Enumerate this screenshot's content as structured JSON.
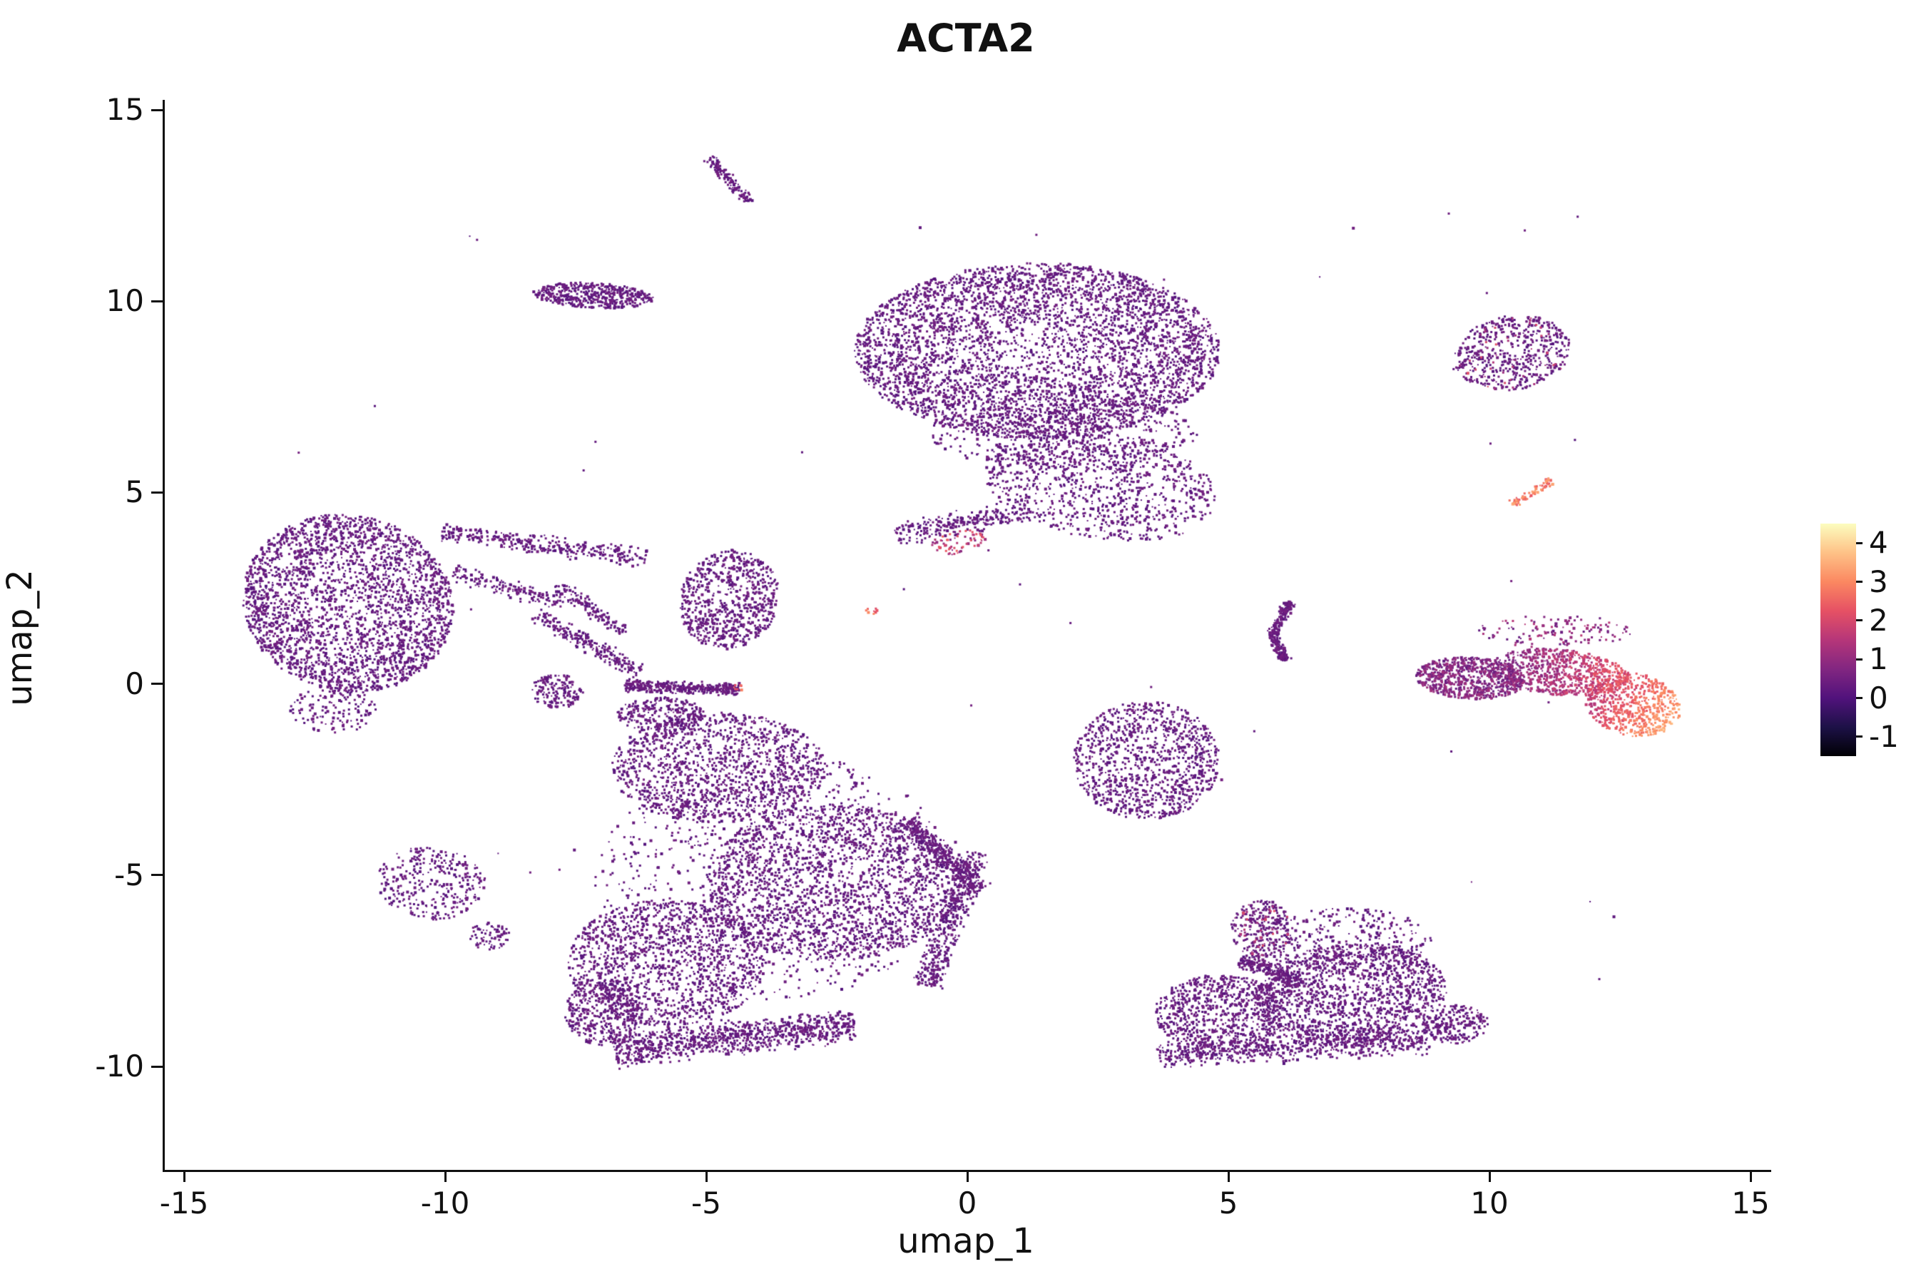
{
  "chart_data": {
    "type": "scatter",
    "title": "ACTA2",
    "xlabel": "umap_1",
    "ylabel": "umap_2",
    "xlim": [
      -15.4,
      15.4
    ],
    "ylim": [
      -12.7,
      15.3
    ],
    "x_ticks": [
      -15,
      -10,
      -5,
      0,
      5,
      10,
      15
    ],
    "y_ticks": [
      -10,
      -5,
      0,
      5,
      10,
      15
    ],
    "grid": false,
    "legend_position": "right",
    "colorbar": {
      "ticks": [
        4,
        3,
        2,
        1,
        0,
        -1
      ],
      "vmin": -1.5,
      "vmax": 4.5,
      "colormap": "magma",
      "stops": [
        {
          "t": 0.0,
          "c": "#000004"
        },
        {
          "t": 0.125,
          "c": "#1d1147"
        },
        {
          "t": 0.25,
          "c": "#51127c"
        },
        {
          "t": 0.375,
          "c": "#822681"
        },
        {
          "t": 0.5,
          "c": "#b63679"
        },
        {
          "t": 0.625,
          "c": "#e65164"
        },
        {
          "t": 0.75,
          "c": "#fb8861"
        },
        {
          "t": 0.875,
          "c": "#fec287"
        },
        {
          "t": 1.0,
          "c": "#fcfdbf"
        }
      ]
    },
    "base_point_color": "#51127c",
    "clusters": [
      {
        "name": "tiny-streak-top",
        "shape": "streak",
        "x1": -5.0,
        "y1": 13.75,
        "x2": -4.2,
        "y2": 12.6,
        "w": 0.16,
        "n": 130
      },
      {
        "name": "band-top-left",
        "shape": "gauss",
        "cx": -7.2,
        "cy": 10.15,
        "rx": 1.15,
        "ry": 0.33,
        "rot": -4,
        "p": 0.45,
        "n": 480
      },
      {
        "name": "top-main-blob",
        "shape": "gauss",
        "cx": 1.3,
        "cy": 8.7,
        "rx": 3.5,
        "ry": 2.3,
        "rot": 0,
        "p": 0.42,
        "n": 4300
      },
      {
        "name": "top-main-lower",
        "shape": "gauss",
        "cx": 2.5,
        "cy": 5.2,
        "rx": 2.3,
        "ry": 1.4,
        "rot": -15,
        "p": 0.5,
        "n": 950
      },
      {
        "name": "top-main-bridge",
        "shape": "gauss",
        "cx": 1.8,
        "cy": 6.6,
        "rx": 2.6,
        "ry": 1.0,
        "rot": 0,
        "p": 0.5,
        "n": 450
      },
      {
        "name": "top-tail-streak",
        "shape": "streak",
        "x1": -1.4,
        "y1": 3.9,
        "x2": 1.1,
        "y2": 4.5,
        "w": 0.35,
        "n": 260
      },
      {
        "name": "top-tail-hot",
        "shape": "gauss",
        "cx": -0.2,
        "cy": 3.7,
        "rx": 0.55,
        "ry": 0.3,
        "rot": 15,
        "n": 70,
        "v": [
          0.6,
          2.6
        ]
      },
      {
        "name": "ne-cluster",
        "shape": "gauss",
        "cx": 10.4,
        "cy": 8.65,
        "rx": 1.15,
        "ry": 0.95,
        "rot": 25,
        "p": 0.47,
        "n": 560,
        "hot": {
          "frac": 0.07,
          "v": [
            0.9,
            2.2
          ]
        }
      },
      {
        "name": "orange-streak",
        "shape": "streak",
        "x1": 10.35,
        "y1": 4.65,
        "x2": 11.15,
        "y2": 5.3,
        "w": 0.12,
        "n": 75,
        "v": [
          2.1,
          3.4
        ]
      },
      {
        "name": "left-cluster-core",
        "shape": "gauss",
        "cx": -11.9,
        "cy": 2.1,
        "rx": 2.0,
        "ry": 2.35,
        "rot": 12,
        "p": 0.42,
        "n": 2700
      },
      {
        "name": "left-cluster-tail",
        "shape": "streak",
        "x1": -10.1,
        "y1": 3.95,
        "x2": -6.2,
        "y2": 3.3,
        "w": 0.3,
        "n": 330
      },
      {
        "name": "left-cluster-arc",
        "shape": "streak",
        "x1": -9.9,
        "y1": 2.9,
        "x2": -7.8,
        "y2": 2.1,
        "w": 0.25,
        "n": 150
      },
      {
        "name": "left-cluster-low",
        "shape": "gauss",
        "cx": -12.2,
        "cy": -0.7,
        "rx": 0.85,
        "ry": 0.6,
        "rot": 0,
        "n": 130
      },
      {
        "name": "midleft-blob",
        "shape": "gauss",
        "cx": -4.6,
        "cy": 2.2,
        "rx": 0.95,
        "ry": 1.3,
        "rot": -8,
        "p": 0.45,
        "n": 750
      },
      {
        "name": "midleft-arc1",
        "shape": "streak",
        "x1": -8.3,
        "y1": 1.8,
        "x2": -6.3,
        "y2": 0.3,
        "w": 0.25,
        "n": 230
      },
      {
        "name": "midleft-arc2",
        "shape": "streak",
        "x1": -7.9,
        "y1": 2.6,
        "x2": -6.6,
        "y2": 1.3,
        "w": 0.2,
        "n": 130
      },
      {
        "name": "midleft-small",
        "shape": "gauss",
        "cx": -7.9,
        "cy": -0.2,
        "rx": 0.5,
        "ry": 0.45,
        "rot": 0,
        "n": 160
      },
      {
        "name": "midleft-bar",
        "shape": "streak",
        "x1": -6.6,
        "y1": -0.05,
        "x2": -4.4,
        "y2": -0.15,
        "w": 0.18,
        "n": 420
      },
      {
        "name": "midleft-bar-hot",
        "shape": "gauss",
        "cx": -4.45,
        "cy": -0.1,
        "rx": 0.15,
        "ry": 0.08,
        "rot": 0,
        "n": 10,
        "v": [
          1.4,
          2.9
        ]
      },
      {
        "name": "red-dot",
        "shape": "gauss",
        "cx": -1.85,
        "cy": 1.9,
        "rx": 0.14,
        "ry": 0.08,
        "rot": 0,
        "n": 9,
        "v": [
          2.0,
          3.2
        ]
      },
      {
        "name": "small-hook-a",
        "shape": "streak",
        "x1": 6.15,
        "y1": 2.15,
        "x2": 5.8,
        "y2": 1.3,
        "w": 0.14,
        "n": 150
      },
      {
        "name": "small-hook-b",
        "shape": "streak",
        "x1": 5.8,
        "y1": 1.3,
        "x2": 6.05,
        "y2": 0.6,
        "w": 0.14,
        "n": 130
      },
      {
        "name": "hot-left",
        "shape": "gauss",
        "cx": 9.6,
        "cy": 0.15,
        "rx": 1.05,
        "ry": 0.55,
        "rot": -5,
        "p": 0.45,
        "n": 750,
        "v": [
          0.15,
          1.2
        ]
      },
      {
        "name": "hot-mid",
        "shape": "gauss",
        "cx": 11.3,
        "cy": 0.3,
        "rx": 1.35,
        "ry": 0.6,
        "rot": -8,
        "p": 0.5,
        "n": 750,
        "grad": {
          "v0": 0.4,
          "v1": 2.3,
          "noise": 0.9
        }
      },
      {
        "name": "hot-right",
        "shape": "gauss",
        "cx": 12.7,
        "cy": -0.55,
        "rx": 0.95,
        "ry": 0.8,
        "rot": -30,
        "p": 0.5,
        "n": 600,
        "grad": {
          "v0": 1.4,
          "v1": 3.4,
          "noise": 0.8
        }
      },
      {
        "name": "hot-top-sparse",
        "shape": "gauss",
        "cx": 11.2,
        "cy": 1.35,
        "rx": 1.5,
        "ry": 0.45,
        "rot": 0,
        "n": 130,
        "v": [
          0.2,
          1.6
        ]
      },
      {
        "name": "mid-triangle",
        "shape": "gauss",
        "cx": 3.4,
        "cy": -2.0,
        "rx": 1.4,
        "ry": 1.55,
        "rot": 0,
        "p": 0.44,
        "n": 1050
      },
      {
        "name": "bl-lobe1",
        "shape": "gauss",
        "cx": -4.8,
        "cy": -2.2,
        "rx": 2.05,
        "ry": 1.45,
        "rot": 0,
        "p": 0.47,
        "n": 1300
      },
      {
        "name": "bl-lobe2",
        "shape": "gauss",
        "cx": -2.6,
        "cy": -5.2,
        "rx": 2.45,
        "ry": 2.05,
        "rot": 0,
        "p": 0.47,
        "n": 2000
      },
      {
        "name": "bl-lobe3",
        "shape": "gauss",
        "cx": -5.8,
        "cy": -7.3,
        "rx": 1.9,
        "ry": 1.65,
        "rot": 0,
        "p": 0.47,
        "n": 1400
      },
      {
        "name": "bl-bottom-arc",
        "shape": "streak",
        "x1": -6.8,
        "y1": -9.6,
        "x2": -2.2,
        "y2": -8.9,
        "w": 0.5,
        "n": 950
      },
      {
        "name": "bl-lobe5",
        "shape": "gauss",
        "cx": -7.0,
        "cy": -8.6,
        "rx": 0.75,
        "ry": 0.85,
        "rot": 0,
        "n": 350
      },
      {
        "name": "bl-diag-streak",
        "shape": "streak",
        "x1": -1.2,
        "y1": -3.6,
        "x2": 0.2,
        "y2": -5.4,
        "w": 0.3,
        "n": 350
      },
      {
        "name": "bl-right-edge",
        "shape": "streak",
        "x1": 0.1,
        "y1": -4.4,
        "x2": -0.8,
        "y2": -7.9,
        "w": 0.35,
        "n": 500
      },
      {
        "name": "bl-top-edge",
        "shape": "gauss",
        "cx": -5.9,
        "cy": -0.8,
        "rx": 0.85,
        "ry": 0.45,
        "rot": 0,
        "n": 280
      },
      {
        "name": "bl-sparse",
        "shape": "gauss",
        "cx": -3.8,
        "cy": -5.0,
        "rx": 3.4,
        "ry": 3.3,
        "rot": 0,
        "n": 900
      },
      {
        "name": "left-low-small",
        "shape": "gauss",
        "cx": -10.3,
        "cy": -5.2,
        "rx": 1.05,
        "ry": 0.95,
        "rot": -20,
        "n": 320
      },
      {
        "name": "left-low-tiny",
        "shape": "gauss",
        "cx": -9.2,
        "cy": -6.6,
        "rx": 0.4,
        "ry": 0.35,
        "rot": 0,
        "n": 70
      },
      {
        "name": "br-left-lobe",
        "shape": "gauss",
        "cx": 4.8,
        "cy": -8.6,
        "rx": 1.25,
        "ry": 1.0,
        "rot": 0,
        "p": 0.46,
        "n": 750
      },
      {
        "name": "br-right-lobe",
        "shape": "gauss",
        "cx": 7.3,
        "cy": -8.1,
        "rx": 1.85,
        "ry": 1.3,
        "rot": 8,
        "p": 0.46,
        "n": 1450
      },
      {
        "name": "br-bottom-arc",
        "shape": "streak",
        "x1": 3.6,
        "y1": -9.7,
        "x2": 8.8,
        "y2": -9.3,
        "w": 0.42,
        "n": 700
      },
      {
        "name": "br-top-protrusion",
        "shape": "gauss",
        "cx": 5.6,
        "cy": -6.4,
        "rx": 0.6,
        "ry": 0.75,
        "rot": 0,
        "n": 280,
        "hot": {
          "frac": 0.15,
          "v": [
            0.8,
            2.2
          ]
        }
      },
      {
        "name": "br-neck",
        "shape": "streak",
        "x1": 5.2,
        "y1": -7.2,
        "x2": 6.4,
        "y2": -7.8,
        "w": 0.25,
        "n": 230
      },
      {
        "name": "br-right-tip",
        "shape": "gauss",
        "cx": 9.3,
        "cy": -8.9,
        "rx": 0.65,
        "ry": 0.5,
        "rot": 0,
        "n": 220
      },
      {
        "name": "br-top-sparse",
        "shape": "gauss",
        "cx": 7.2,
        "cy": -6.7,
        "rx": 1.7,
        "ry": 0.85,
        "rot": 0,
        "n": 320
      },
      {
        "name": "dust",
        "shape": "rect",
        "x1": -13.0,
        "y1": -10.0,
        "x2": 12.5,
        "y2": 12.5,
        "n": 60
      }
    ]
  }
}
